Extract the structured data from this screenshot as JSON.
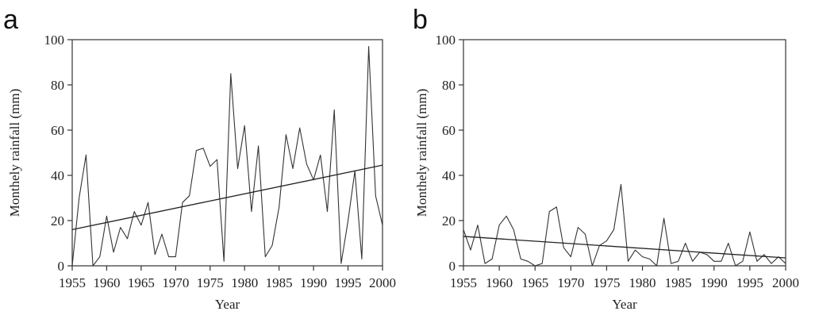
{
  "chart_data": [
    {
      "type": "line",
      "panel_label": "a",
      "xlabel": "Year",
      "ylabel": "Monthely rainfall (mm)",
      "xlim": [
        1955,
        2000
      ],
      "ylim": [
        0,
        100
      ],
      "xticks": [
        1955,
        1960,
        1965,
        1970,
        1975,
        1980,
        1985,
        1990,
        1995,
        2000
      ],
      "yticks": [
        0,
        20,
        40,
        60,
        80,
        100
      ],
      "grid": false,
      "series": [
        {
          "x": [
            1955,
            1956,
            1957,
            1958,
            1959,
            1960,
            1961,
            1962,
            1963,
            1964,
            1965,
            1966,
            1967,
            1968,
            1969,
            1970,
            1971,
            1972,
            1973,
            1974,
            1975,
            1976,
            1977,
            1978,
            1979,
            1980,
            1981,
            1982,
            1983,
            1984,
            1985,
            1986,
            1987,
            1988,
            1989,
            1990,
            1991,
            1992,
            1993,
            1994,
            1995,
            1996,
            1997,
            1998,
            1999,
            2000
          ],
          "values": [
            0,
            30,
            49,
            0,
            4,
            22,
            6,
            17,
            12,
            24,
            18,
            28,
            5,
            14,
            4,
            4,
            28,
            31,
            51,
            52,
            44,
            47,
            2,
            85,
            43,
            62,
            24,
            53,
            4,
            9,
            26,
            58,
            43,
            61,
            45,
            38,
            49,
            24,
            69,
            1,
            20,
            42,
            3,
            97,
            31,
            18
          ]
        }
      ],
      "trend": {
        "x": [
          1955,
          2000
        ],
        "values": [
          16,
          44.5
        ]
      }
    },
    {
      "type": "line",
      "panel_label": "b",
      "xlabel": "Year",
      "ylabel": "Monthely rainfall (mm)",
      "xlim": [
        1955,
        2000
      ],
      "ylim": [
        0,
        100
      ],
      "xticks": [
        1955,
        1960,
        1965,
        1970,
        1975,
        1980,
        1985,
        1990,
        1995,
        2000
      ],
      "yticks": [
        0,
        20,
        40,
        60,
        80,
        100
      ],
      "grid": false,
      "series": [
        {
          "x": [
            1955,
            1956,
            1957,
            1958,
            1959,
            1960,
            1961,
            1962,
            1963,
            1964,
            1965,
            1966,
            1967,
            1968,
            1969,
            1970,
            1971,
            1972,
            1973,
            1974,
            1975,
            1976,
            1977,
            1978,
            1979,
            1980,
            1981,
            1982,
            1983,
            1984,
            1985,
            1986,
            1987,
            1988,
            1989,
            1990,
            1991,
            1992,
            1993,
            1994,
            1995,
            1996,
            1997,
            1998,
            1999,
            2000
          ],
          "values": [
            16,
            7,
            18,
            1,
            3,
            18,
            22,
            16,
            3,
            2,
            0,
            1,
            24,
            26,
            8,
            4,
            17,
            14,
            0,
            9,
            11,
            16,
            36,
            2,
            7,
            4,
            3,
            0,
            21,
            1,
            2,
            10,
            2,
            6,
            5,
            2,
            2,
            10,
            0,
            2,
            15,
            2,
            5,
            1,
            4,
            1
          ]
        }
      ],
      "trend": {
        "x": [
          1955,
          2000
        ],
        "values": [
          13,
          3.5
        ]
      }
    }
  ]
}
